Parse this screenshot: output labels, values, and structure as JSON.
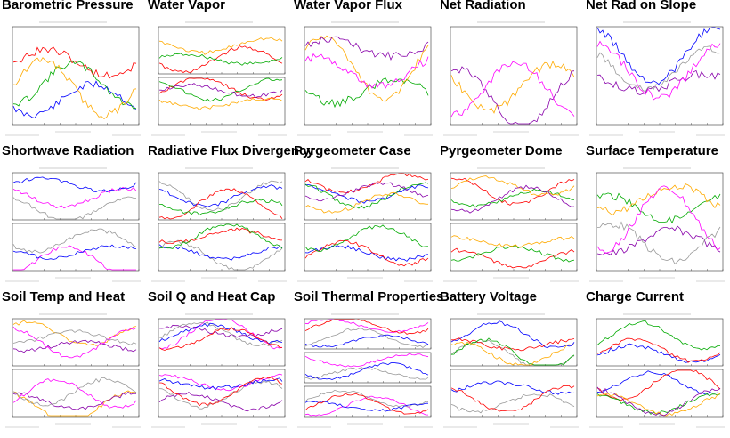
{
  "page": {
    "tiles": [
      {
        "title": "Barometric Pressure",
        "panels": 1
      },
      {
        "title": "Water Vapor",
        "panels": 2
      },
      {
        "title": "Water Vapor Flux",
        "panels": 1
      },
      {
        "title": "Net Radiation",
        "panels": 1
      },
      {
        "title": "Net Rad on Slope",
        "panels": 1
      },
      {
        "title": "Shortwave Radiation",
        "panels": 2
      },
      {
        "title": "Radiative Flux Divergency",
        "panels": 2
      },
      {
        "title": "Pyrgeometer Case",
        "panels": 2
      },
      {
        "title": "Pyrgeometer Dome",
        "panels": 2
      },
      {
        "title": "Surface Temperature",
        "panels": 1
      },
      {
        "title": "Soil Temp and Heat",
        "panels": 2
      },
      {
        "title": "Soil Q and Heat Cap",
        "panels": 2
      },
      {
        "title": "Soil Thermal Properties",
        "panels": 3
      },
      {
        "title": "Battery Voltage",
        "panels": 2
      },
      {
        "title": "Charge Current",
        "panels": 2
      }
    ],
    "colors": {
      "title": "#000000",
      "series": [
        "#0000ff",
        "#ff0000",
        "#00aa00",
        "#ffaa00",
        "#8800aa",
        "#ff00ff",
        "#999999"
      ]
    }
  }
}
